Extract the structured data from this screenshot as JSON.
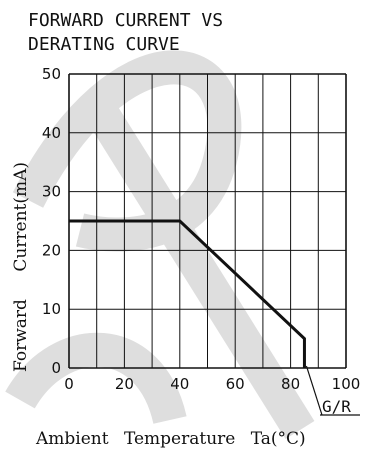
{
  "chart_data": {
    "type": "line",
    "title_line1": "FORWARD CURRENT VS",
    "title_line2": "DERATING CURVE",
    "xlabel": "Ambient Temperature Ta(°C)",
    "ylabel": "Forward Current(mA)",
    "x_ticks": [
      "0",
      "20",
      "40",
      "60",
      "80",
      "100"
    ],
    "y_ticks": [
      "0",
      "10",
      "20",
      "30",
      "40",
      "50"
    ],
    "xlim": [
      0,
      100
    ],
    "ylim": [
      0,
      50
    ],
    "grid": true,
    "series": [
      {
        "x": [
          0,
          40,
          85,
          85
        ],
        "y": [
          25,
          25,
          5,
          0
        ]
      }
    ],
    "annotation": "G/R"
  },
  "colors": {
    "curve": "#111111",
    "grid": "#111111",
    "watermark": "#dcdcdc"
  }
}
